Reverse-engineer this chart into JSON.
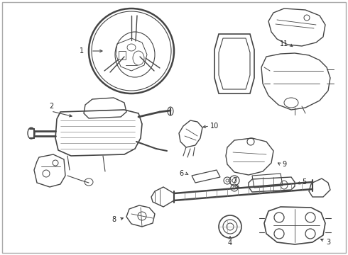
{
  "background_color": "#f0f0f0",
  "line_color": "#333333",
  "fig_width": 4.9,
  "fig_height": 3.6,
  "dpi": 100,
  "border_color": "#cccccc",
  "gray": "#888888",
  "darkgray": "#555555",
  "lightgray": "#bbbbbb"
}
